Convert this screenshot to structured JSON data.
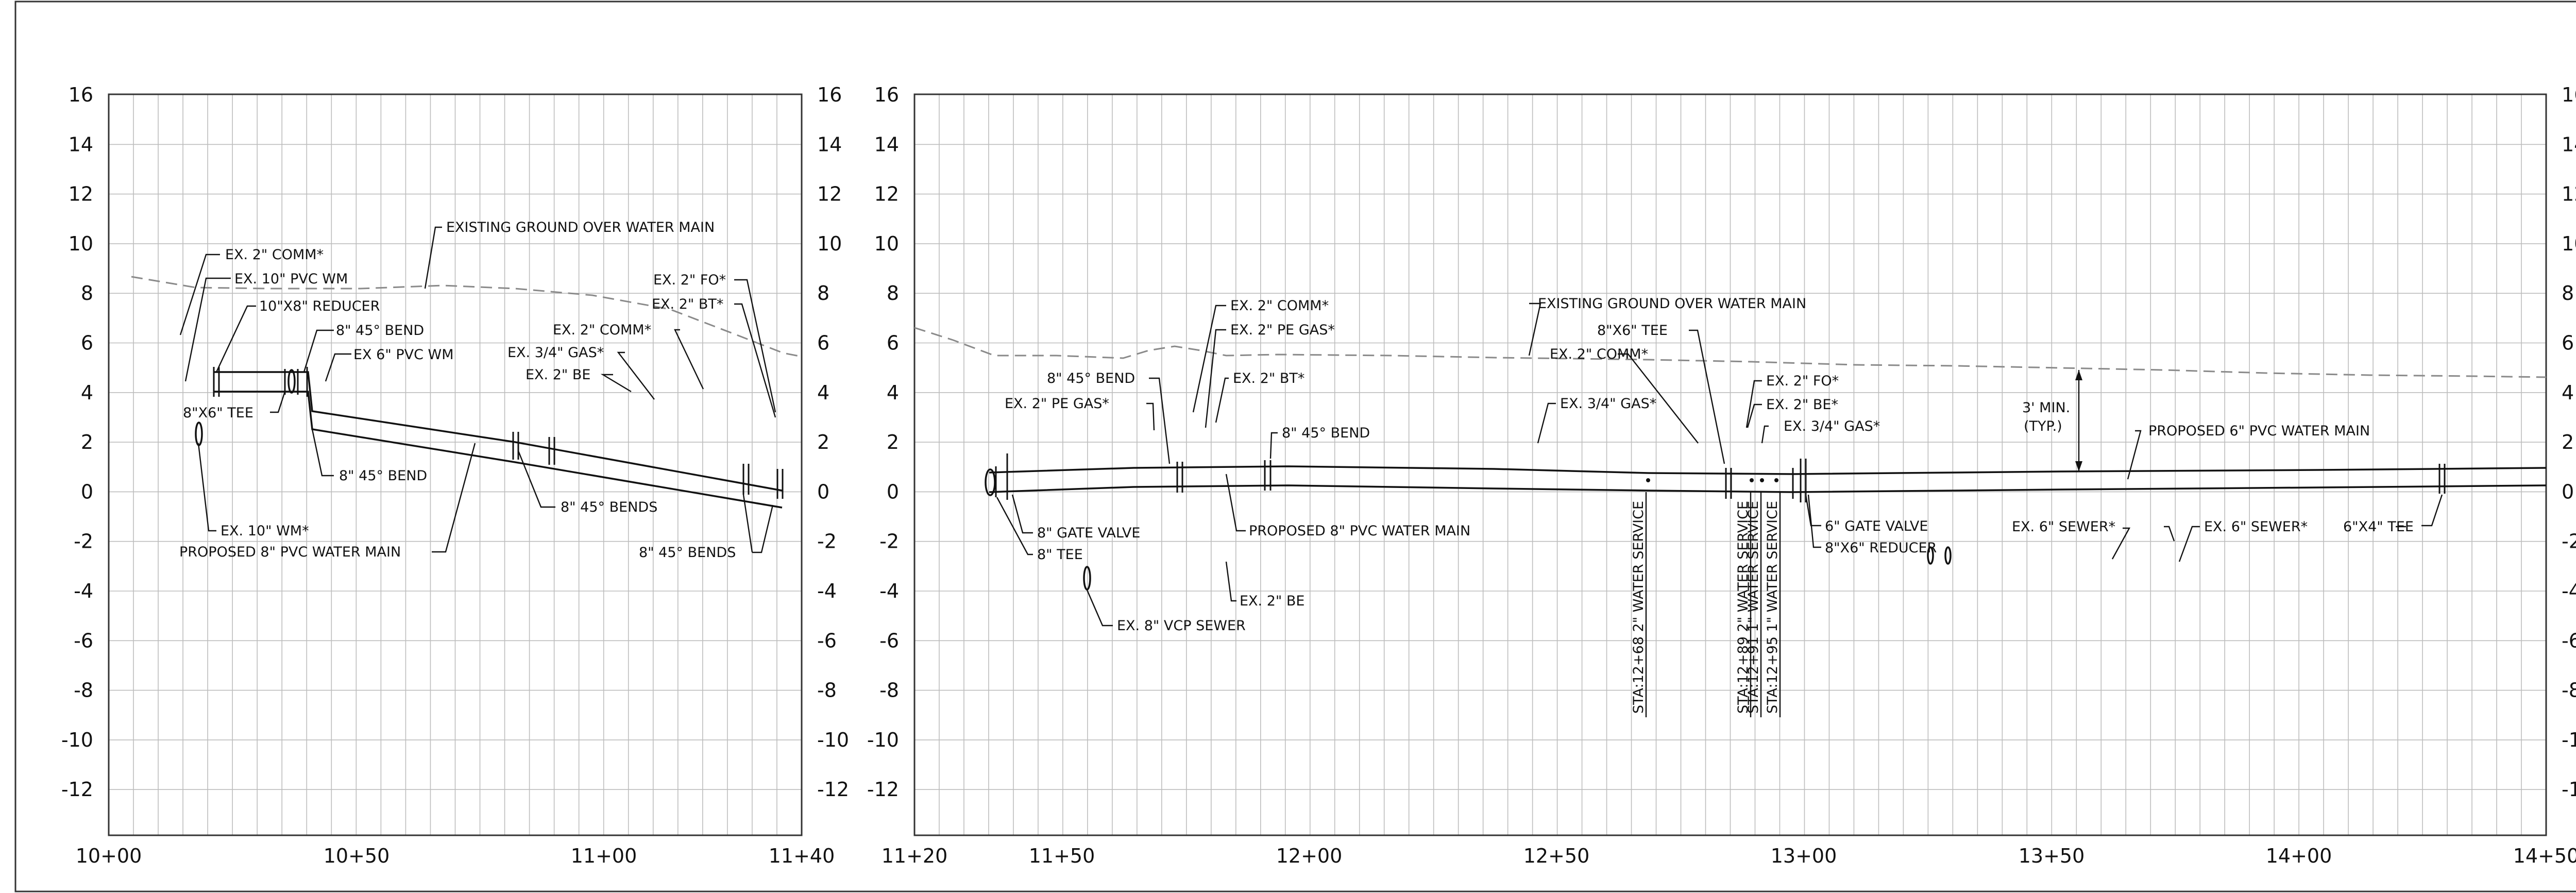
{
  "panel_left": {
    "y_ticks": [
      "16",
      "14",
      "12",
      "10",
      "8",
      "6",
      "4",
      "2",
      "0",
      "-2",
      "-4",
      "-6",
      "-8",
      "-10",
      "-12"
    ],
    "x_ticks": [
      "10+00",
      "10+50",
      "11+00",
      "11+40"
    ],
    "labels": {
      "ex_2_comm": "EX. 2\" COMM*",
      "ex_10_pvc_wm": "EX. 10\" PVC WM",
      "reducer_10x8": "10\"X8\" REDUCER",
      "bend_45_top": "8\" 45° BEND",
      "ex_6_pvc_wm": "EX 6\" PVC WM",
      "tee_8x6": "8\"X6\" TEE",
      "bend_45_bottom": "8\" 45° BEND",
      "ex_10_wm": "EX. 10\" WM*",
      "proposed_8_main": "PROPOSED 8\" PVC WATER MAIN",
      "existing_ground": "EXISTING GROUND OVER WATER MAIN",
      "ex_2_fo": "EX. 2\" FO*",
      "ex_2_bt": "EX. 2\" BT*",
      "ex_2_comm_b": "EX. 2\" COMM*",
      "ex_34_gas": "EX. 3/4\" GAS*",
      "ex_2_be": "EX. 2\" BE",
      "bends_45_mid": "8\" 45° BENDS",
      "bends_45_right": "8\" 45° BENDS"
    }
  },
  "panel_right": {
    "y_ticks": [
      "16",
      "14",
      "12",
      "10",
      "8",
      "6",
      "4",
      "2",
      "0",
      "-2",
      "-4",
      "-6",
      "-8",
      "-10",
      "-12"
    ],
    "x_ticks": [
      "11+20",
      "11+50",
      "12+00",
      "12+50",
      "13+00",
      "13+50",
      "14+00",
      "14+50"
    ],
    "labels": {
      "existing_ground": "EXISTING GROUND OVER WATER MAIN",
      "ex_2_comm": "EX. 2\" COMM*",
      "ex_2_pe_gas_top": "EX. 2\" PE GAS*",
      "ex_2_bt": "EX. 2\" BT*",
      "bend_45_a": "8\" 45° BEND",
      "ex_2_pe_gas_left": "EX. 2\" PE GAS*",
      "bend_45_b": "8\" 45° BEND",
      "gate_valve_8": "8\" GATE VALVE",
      "tee_8": "8\" TEE",
      "proposed_8_main": "PROPOSED 8\" PVC WATER MAIN",
      "ex_2_be": "EX. 2\" BE",
      "ex_8_vcp": "EX. 8\" VCP SEWER",
      "ex_34_gas_mid": "EX. 3/4\" GAS*",
      "tee_8x6": "8\"X6\" TEE",
      "ex_2_comm_b": "EX. 2\" COMM*",
      "ex_2_fo": "EX. 2\" FO*",
      "ex_2_be_b": "EX. 2\" BE*",
      "ex_34_gas_b": "EX. 3/4\" GAS*",
      "min_3ft": "3' MIN.",
      "typ": "(TYP.)",
      "proposed_6_main": "PROPOSED 6\" PVC WATER MAIN",
      "gate_valve_6": "6\" GATE VALVE",
      "reducer_8x6": "8\"X6\" REDUCER",
      "ex_6_sewer_a": "EX. 6\" SEWER*",
      "ex_6_sewer_b": "EX. 6\" SEWER*",
      "tee_6x4": "6\"X4\" TEE",
      "svc_1": "STA:12+68 2\" WATER SERVICE",
      "svc_2": "STA:12+89 2\" WATER SERVICE",
      "svc_3": "STA:12+91 1\" WATER SERVICE",
      "svc_4": "STA:12+95 1\" WATER SERVICE"
    }
  }
}
